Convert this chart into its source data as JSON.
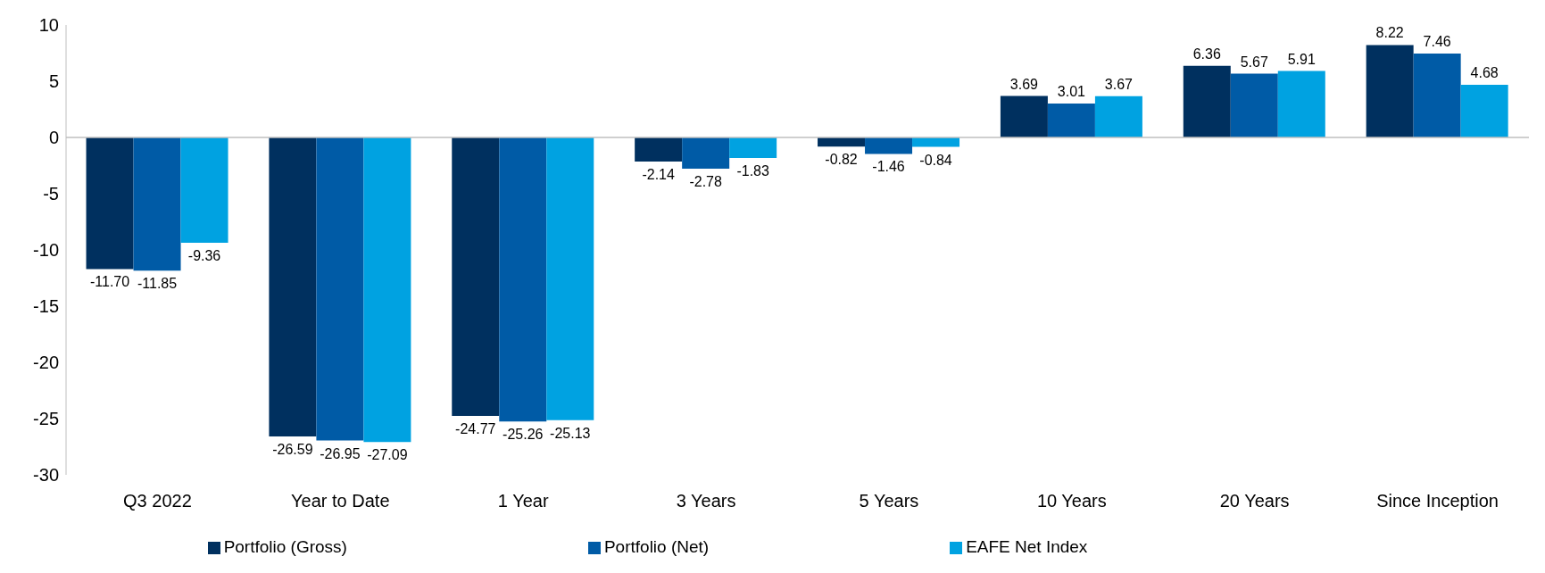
{
  "chart_data": {
    "type": "bar",
    "categories": [
      "Q3 2022",
      "Year to Date",
      "1 Year",
      "3 Years",
      "5 Years",
      "10 Years",
      "20 Years",
      "Since Inception"
    ],
    "series": [
      {
        "name": "Portfolio (Gross)",
        "color": "#00305f",
        "values": [
          -11.7,
          -26.59,
          -24.77,
          -2.14,
          -0.82,
          3.69,
          6.36,
          8.22
        ],
        "value_labels": [
          "-11.70",
          "-26.59",
          "-24.77",
          "-2.14",
          "-0.82",
          "3.69",
          "6.36",
          "8.22"
        ]
      },
      {
        "name": "Portfolio (Net)",
        "color": "#005ba6",
        "values": [
          -11.85,
          -26.95,
          -25.26,
          -2.78,
          -1.46,
          3.01,
          5.67,
          7.46
        ],
        "value_labels": [
          "-11.85",
          "-26.95",
          "-25.26",
          "-2.78",
          "-1.46",
          "3.01",
          "5.67",
          "7.46"
        ]
      },
      {
        "name": "EAFE Net Index",
        "color": "#00a2e1",
        "values": [
          -9.36,
          -27.09,
          -25.13,
          -1.83,
          -0.84,
          3.67,
          5.91,
          4.68
        ],
        "value_labels": [
          "-9.36",
          "-27.09",
          "-25.13",
          "-1.83",
          "-0.84",
          "3.67",
          "5.91",
          "4.68"
        ]
      }
    ],
    "ylim": [
      -30,
      10
    ],
    "yticks": [
      -30,
      -25,
      -20,
      -15,
      -10,
      -5,
      0,
      5,
      10
    ],
    "legend": "bottom"
  }
}
